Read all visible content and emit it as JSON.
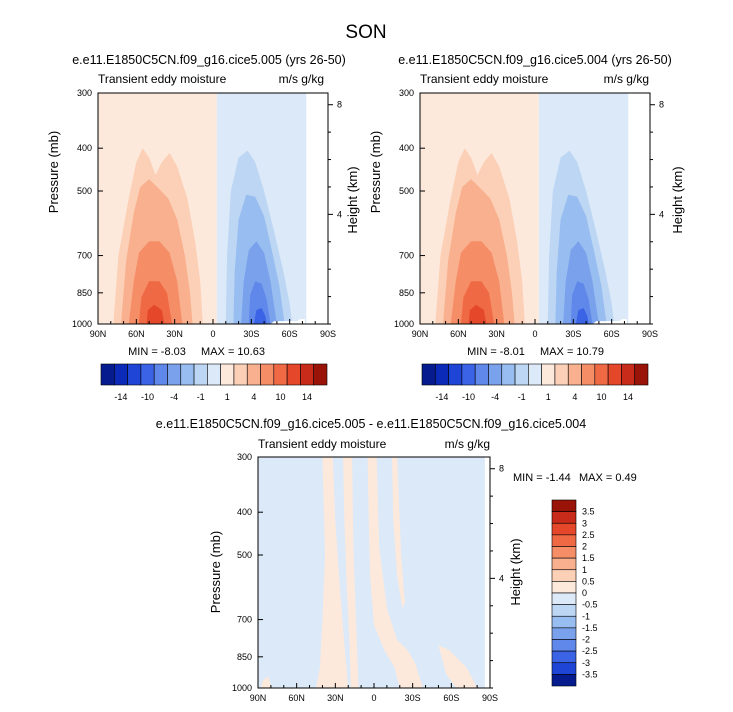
{
  "title": "SON",
  "colors": {
    "pos": [
      "#fde9dc",
      "#fbd0b6",
      "#f9b08e",
      "#f58d67",
      "#ef6a44",
      "#e4472a",
      "#c92b1a",
      "#9a1309"
    ],
    "neg": [
      "#dbe9f8",
      "#bcd6f4",
      "#98bdf0",
      "#7aa2ec",
      "#5f88ea",
      "#3a63e6",
      "#1f45d6",
      "#0c2ab8",
      "#061c8e"
    ],
    "axis": "#000000",
    "background": "#ffffff"
  },
  "chart_data": [
    {
      "id": "p1",
      "type": "contour",
      "title": "e.e11.E1850C5CN.f09_g16.cice5.005 (yrs 26-50)",
      "left_label": "Transient eddy moisture",
      "right_label": "m/s g/kg",
      "ylabel": "Pressure (mb)",
      "y2label": "Height (km)",
      "x_ticks": [
        "90N",
        "60N",
        "30N",
        "0",
        "30S",
        "60S",
        "90S"
      ],
      "x_values": [
        90,
        60,
        30,
        0,
        -30,
        -60,
        -90
      ],
      "y_ticks": [
        "300",
        "400",
        "500",
        "700",
        "850",
        "1000"
      ],
      "y_values": [
        300,
        400,
        500,
        700,
        850,
        1000
      ],
      "y2_ticks": [
        "8",
        "4"
      ],
      "y2_values": [
        8,
        4
      ],
      "min_label": "MIN = -8.03",
      "max_label": "MAX = 10.63",
      "min": -8.03,
      "max": 10.63
    },
    {
      "id": "p2",
      "type": "contour",
      "title": "e.e11.E1850C5CN.f09_g16.cice5.004 (yrs 26-50)",
      "left_label": "Transient eddy moisture",
      "right_label": "m/s g/kg",
      "ylabel": "Pressure (mb)",
      "y2label": "Height (km)",
      "x_ticks": [
        "90N",
        "60N",
        "30N",
        "0",
        "30S",
        "60S",
        "90S"
      ],
      "x_values": [
        90,
        60,
        30,
        0,
        -30,
        -60,
        -90
      ],
      "y_ticks": [
        "300",
        "400",
        "500",
        "700",
        "850",
        "1000"
      ],
      "y_values": [
        300,
        400,
        500,
        700,
        850,
        1000
      ],
      "y2_ticks": [
        "8",
        "4"
      ],
      "y2_values": [
        8,
        4
      ],
      "min_label": "MIN = -8.01",
      "max_label": "MAX = 10.79",
      "min": -8.01,
      "max": 10.79
    },
    {
      "id": "p3",
      "type": "contour",
      "title": "e.e11.E1850C5CN.f09_g16.cice5.005 - e.e11.E1850C5CN.f09_g16.cice5.004",
      "left_label": "Transient eddy moisture",
      "right_label": "m/s g/kg",
      "ylabel": "Pressure (mb)",
      "y2label": "Height (km)",
      "x_ticks": [
        "90N",
        "60N",
        "30N",
        "0",
        "30S",
        "60S",
        "90S"
      ],
      "x_values": [
        90,
        60,
        30,
        0,
        -30,
        -60,
        -90
      ],
      "y_ticks": [
        "300",
        "400",
        "500",
        "700",
        "850",
        "1000"
      ],
      "y_values": [
        300,
        400,
        500,
        700,
        850,
        1000
      ],
      "y2_ticks": [
        "8",
        "4"
      ],
      "y2_values": [
        8,
        4
      ],
      "min_label": "MIN = -1.44",
      "max_label": "MAX =  0.49",
      "min": -1.44,
      "max": 0.49
    }
  ],
  "colorbar_main": {
    "levels": [
      -14,
      -10,
      -4,
      -1,
      1,
      4,
      10,
      14
    ],
    "tick_labels": [
      "-14",
      "-10",
      "-4",
      "-1",
      "1",
      "4",
      "10",
      "14"
    ],
    "colors": [
      "#061c8e",
      "#0c2ab8",
      "#1f45d6",
      "#3a63e6",
      "#5f88ea",
      "#7aa2ec",
      "#98bdf0",
      "#bcd6f4",
      "#dbe9f8",
      "#fde9dc",
      "#fbd0b6",
      "#f9b08e",
      "#f58d67",
      "#ef6a44",
      "#e4472a",
      "#c92b1a",
      "#9a1309"
    ]
  },
  "colorbar_diff": {
    "tick_labels": [
      "3.5",
      "3",
      "2.5",
      "2",
      "1.5",
      "1",
      "0.5",
      "0",
      "-0.5",
      "-1",
      "-1.5",
      "-2",
      "-2.5",
      "-3",
      "-3.5"
    ],
    "colors": [
      "#9a1309",
      "#c92b1a",
      "#e4472a",
      "#ef6a44",
      "#f58d67",
      "#f9b08e",
      "#fbd0b6",
      "#fde9dc",
      "#dbe9f8",
      "#bcd6f4",
      "#98bdf0",
      "#7aa2ec",
      "#5f88ea",
      "#3a63e6",
      "#1f45d6",
      "#061c8e"
    ]
  }
}
